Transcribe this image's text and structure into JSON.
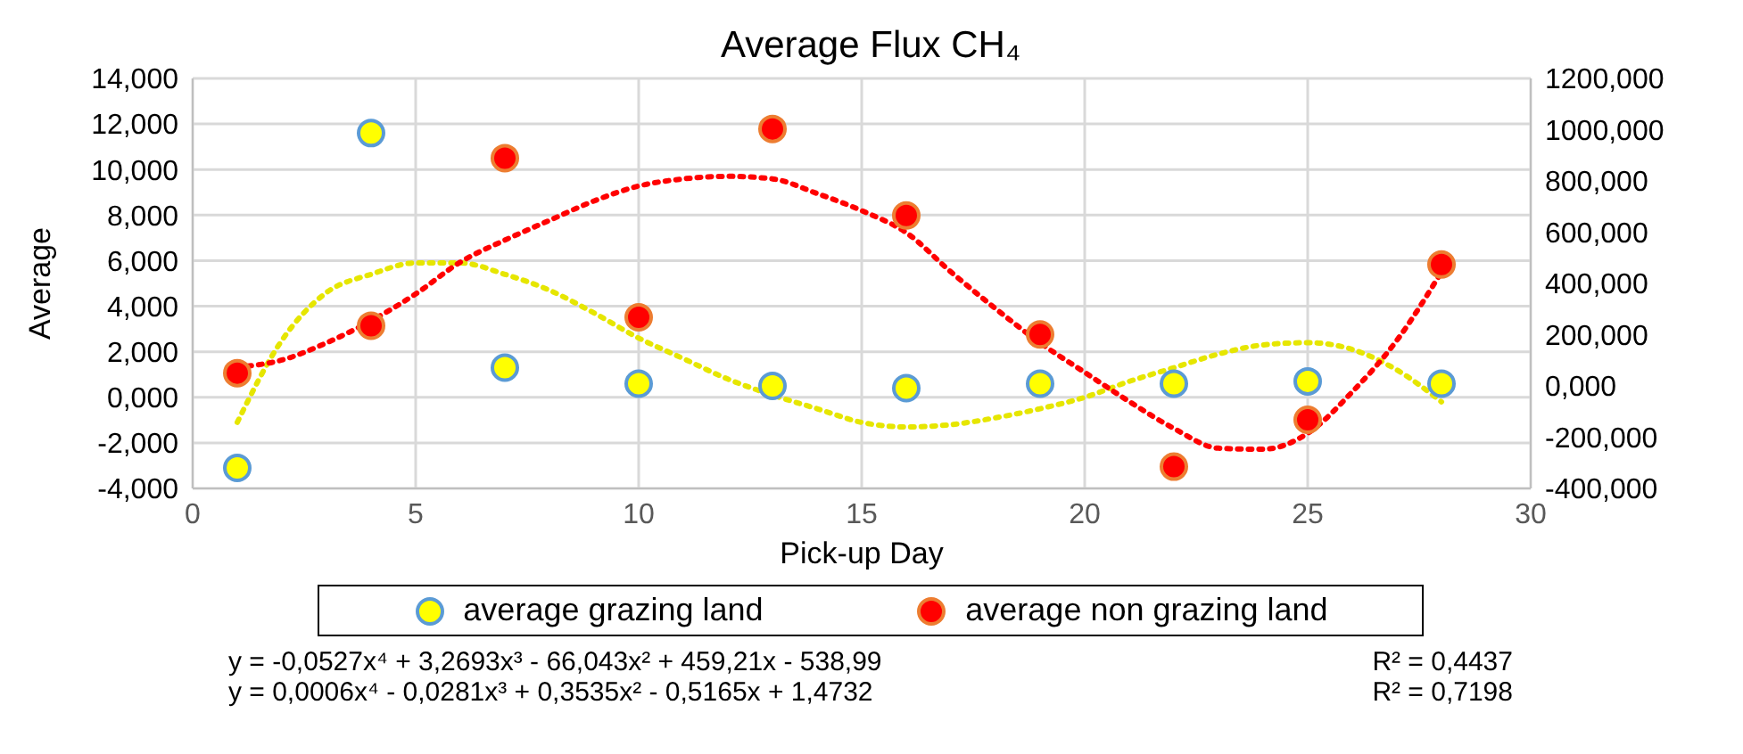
{
  "chart_data": {
    "type": "scatter",
    "title": "Average Flux CH₄",
    "xlabel": "Pick-up Day",
    "ylabel": "Average",
    "xlim": [
      0,
      30
    ],
    "xticks": [
      0,
      5,
      10,
      15,
      20,
      25,
      30
    ],
    "ylim": [
      -4,
      14
    ],
    "yticks": [
      {
        "value": -4,
        "label": "-4,000"
      },
      {
        "value": -2,
        "label": "-2,000"
      },
      {
        "value": 0,
        "label": "0,000"
      },
      {
        "value": 2,
        "label": "2,000"
      },
      {
        "value": 4,
        "label": "4,000"
      },
      {
        "value": 6,
        "label": "6,000"
      },
      {
        "value": 8,
        "label": "8,000"
      },
      {
        "value": 10,
        "label": "10,000"
      },
      {
        "value": 12,
        "label": "12,000"
      },
      {
        "value": 14,
        "label": "14,000"
      }
    ],
    "y2lim": [
      -400,
      1200
    ],
    "y2ticks": [
      {
        "value": -400,
        "label": "-400,000"
      },
      {
        "value": -200,
        "label": "-200,000"
      },
      {
        "value": 0,
        "label": "0,000"
      },
      {
        "value": 200,
        "label": "200,000"
      },
      {
        "value": 400,
        "label": "400,000"
      },
      {
        "value": 600,
        "label": "600,000"
      },
      {
        "value": 800,
        "label": "800,000"
      },
      {
        "value": 1000,
        "label": "1000,000"
      },
      {
        "value": 1200,
        "label": "1200,000"
      }
    ],
    "grid": true,
    "legend": "bottom",
    "marker": "circle",
    "x": [
      1,
      4,
      7,
      10,
      13,
      16,
      19,
      22,
      25,
      28
    ],
    "series": [
      {
        "name": "average grazing land",
        "color": "#ffff00",
        "values": [
          -3.1,
          11.6,
          1.3,
          0.6,
          0.5,
          0.4,
          0.6,
          0.6,
          0.7,
          0.6
        ]
      },
      {
        "name": "average non grazing land",
        "axis": "y2",
        "color": "#ff0000",
        "values": [
          50,
          235,
          889,
          268,
          1003,
          665,
          201,
          -315,
          -132,
          474
        ]
      },
      {
        "type": "line",
        "color": "#e6e600",
        "line_style": "dotted",
        "marker": "none",
        "x": [
          1,
          2,
          3,
          4,
          5,
          6,
          7,
          8,
          9,
          10,
          11,
          12,
          13,
          14,
          15,
          16,
          17,
          18,
          19,
          20,
          21,
          22,
          23,
          24,
          25,
          26,
          27,
          28
        ],
        "values": [
          -1.1,
          2.5,
          4.6,
          5.4,
          5.9,
          5.9,
          5.4,
          4.7,
          3.7,
          2.6,
          1.7,
          0.8,
          0.1,
          -0.5,
          -1.1,
          -1.3,
          -1.2,
          -0.9,
          -0.5,
          0.0,
          0.7,
          1.3,
          1.9,
          2.3,
          2.4,
          2.1,
          1.2,
          -0.2
        ]
      },
      {
        "type": "line",
        "axis": "y2",
        "color": "#ff0000",
        "line_style": "dotted",
        "marker": "none",
        "x": [
          1,
          2,
          3,
          4,
          5,
          6,
          7,
          8,
          9,
          10,
          11,
          12,
          13,
          14,
          15,
          16,
          17,
          18,
          19,
          20,
          21,
          22,
          23,
          24,
          25,
          26,
          27,
          28
        ],
        "values": [
          73,
          101,
          168,
          254,
          359,
          483,
          569,
          646,
          722,
          780,
          808,
          818,
          808,
          751,
          684,
          598,
          445,
          302,
          168,
          53,
          -61,
          -166,
          -243,
          -247,
          -185,
          -23,
          178,
          445
        ]
      }
    ],
    "annotations": [
      "y = -0,0527x⁴ + 3,2693x³ - 66,043x² + 459,21x - 538,99",
      "R² = 0,4437",
      "y = 0,0006x⁴ - 0,0281x³ + 0,3535x² - 0,5165x + 1,4732",
      "R² = 0,7198"
    ]
  }
}
